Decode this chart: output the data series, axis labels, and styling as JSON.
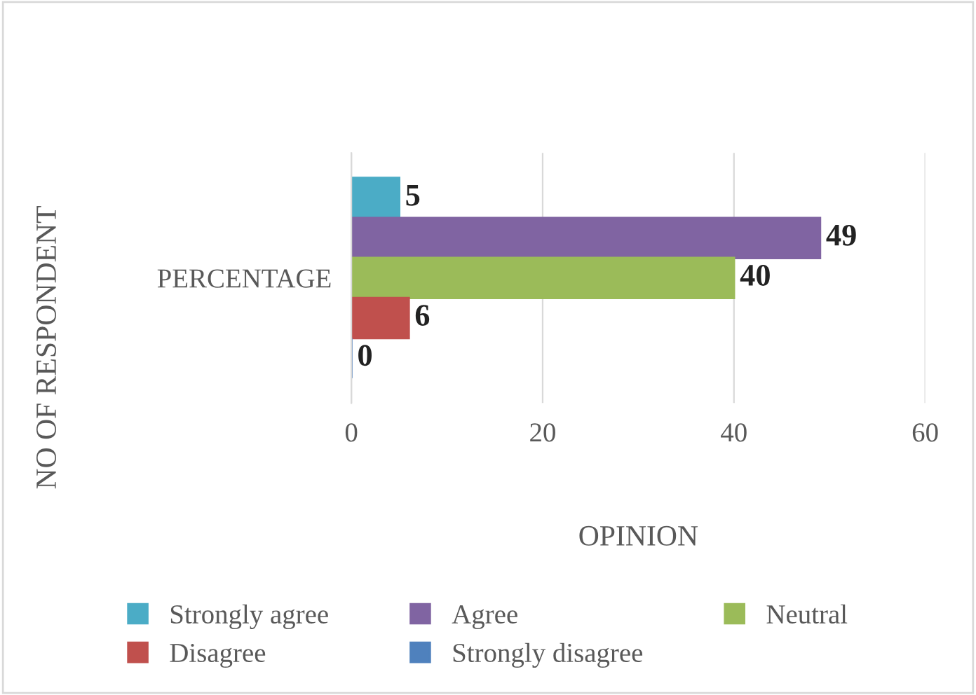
{
  "chart_data": {
    "type": "bar",
    "orientation": "horizontal",
    "categories": [
      "PERCENTAGE"
    ],
    "series": [
      {
        "name": "Strongly agree",
        "color": "#4bacc6",
        "values": [
          5
        ]
      },
      {
        "name": "Agree",
        "color": "#8064a2",
        "values": [
          49
        ]
      },
      {
        "name": "Neutral",
        "color": "#9bbb59",
        "values": [
          40
        ]
      },
      {
        "name": "Disagree",
        "color": "#c0504d",
        "values": [
          6
        ]
      },
      {
        "name": "Strongly disagree",
        "color": "#4f81bd",
        "values": [
          0
        ]
      }
    ],
    "xlim": [
      0,
      60
    ],
    "xticks": [
      0,
      20,
      40,
      60
    ],
    "grid": "x",
    "xlabel": "OPINION",
    "ylabel": "NO OF RESPONDENT",
    "legend": "bottom",
    "data_labels": true
  }
}
